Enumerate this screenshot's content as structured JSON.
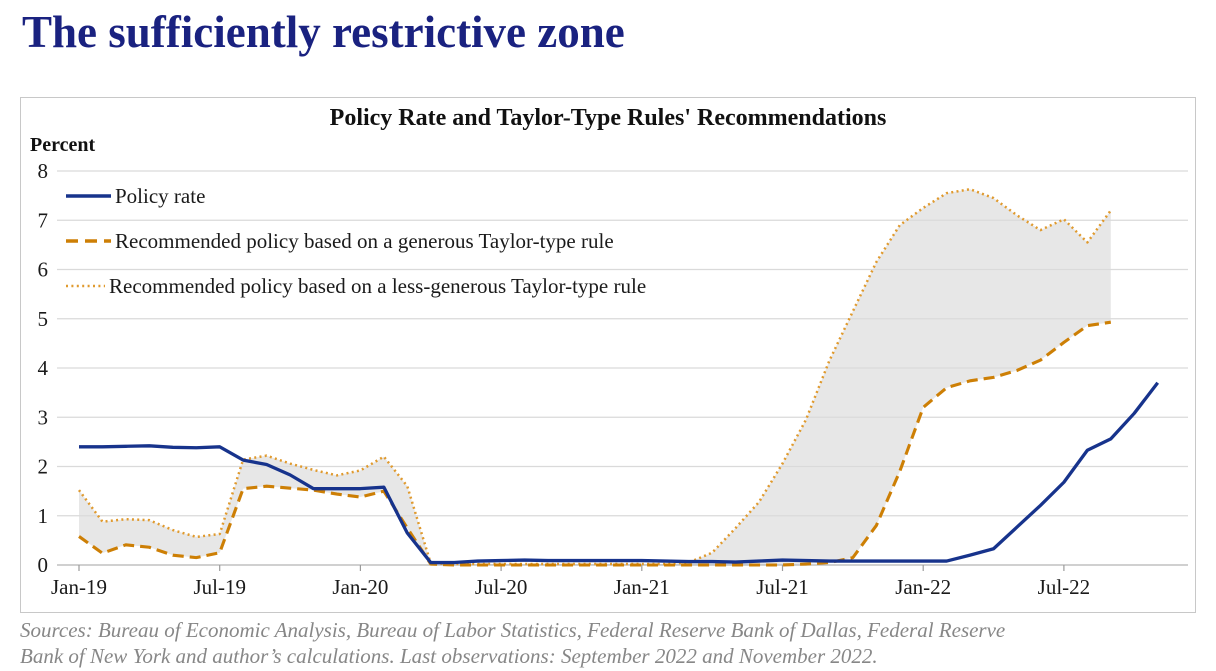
{
  "page": {
    "title": "The sufficiently restrictive zone",
    "title_color": "#1a2280",
    "background_color": "#ffffff"
  },
  "figure": {
    "title": "Policy Rate and Taylor-Type Rules' Recommendations",
    "y_axis_unit": "Percent",
    "panel_border_color": "#c8c8c8",
    "source_note_line1": "Sources: Bureau of Economic Analysis, Bureau of Labor Statistics, Federal Reserve Bank of Dallas, Federal Reserve",
    "source_note_line2": "Bank of New York and author’s calculations. Last observations: September 2022 and November 2022."
  },
  "legend": [
    {
      "label": "Policy rate",
      "style": "solid",
      "color": "#17338c"
    },
    {
      "label": "Recommended policy based on a generous Taylor-type rule",
      "style": "dashed",
      "color": "#cd7f05"
    },
    {
      "label": "Recommended policy based on a less-generous Taylor-type rule",
      "style": "dotted",
      "color": "#e09a2e"
    }
  ],
  "chart_data": {
    "type": "line",
    "title": "Policy Rate and Taylor-Type Rules' Recommendations",
    "ylabel": "Percent",
    "ylim": [
      0,
      8
    ],
    "y_ticks": [
      "0",
      "1",
      "2",
      "3",
      "4",
      "5",
      "6",
      "7",
      "8"
    ],
    "x_tick_labels": [
      "Jan-19",
      "Jul-19",
      "Jan-20",
      "Jul-20",
      "Jan-21",
      "Jul-21",
      "Jan-22",
      "Jul-22"
    ],
    "x_frequency": "monthly starting Jan-2019; policy rate runs through Nov-2022, rule series through Sep-2022",
    "grid": "horizontal gridlines on",
    "legend_position": "top-left inside plot",
    "shaded_band": {
      "between": [
        "generous Taylor-type rule",
        "less-generous Taylor-type rule"
      ],
      "color": "#e7e7e7"
    },
    "series": [
      {
        "name": "Policy rate",
        "color": "#17338c",
        "line_style": "solid",
        "values": [
          2.4,
          2.4,
          2.41,
          2.42,
          2.39,
          2.38,
          2.4,
          2.13,
          2.04,
          1.83,
          1.55,
          1.55,
          1.55,
          1.58,
          0.65,
          0.05,
          0.05,
          0.08,
          0.09,
          0.1,
          0.09,
          0.09,
          0.09,
          0.09,
          0.09,
          0.08,
          0.07,
          0.07,
          0.06,
          0.08,
          0.1,
          0.09,
          0.08,
          0.08,
          0.08,
          0.08,
          0.08,
          0.08,
          0.2,
          0.33,
          0.77,
          1.21,
          1.68,
          2.33,
          2.56,
          3.08,
          3.7
        ]
      },
      {
        "name": "Recommended policy based on a generous Taylor-type rule",
        "color": "#cd7f05",
        "line_style": "dashed",
        "values": [
          0.58,
          0.24,
          0.41,
          0.36,
          0.2,
          0.15,
          0.25,
          1.55,
          1.6,
          1.56,
          1.52,
          1.44,
          1.38,
          1.5,
          0.75,
          0.02,
          0.0,
          0.0,
          0.0,
          0.0,
          0.0,
          0.0,
          0.0,
          0.0,
          0.0,
          0.0,
          0.0,
          0.0,
          0.0,
          0.0,
          0.0,
          0.02,
          0.05,
          0.15,
          0.8,
          1.9,
          3.2,
          3.6,
          3.74,
          3.81,
          3.95,
          4.16,
          4.52,
          4.86,
          4.93
        ]
      },
      {
        "name": "Recommended policy based on a less-generous Taylor-type rule",
        "color": "#e09a2e",
        "line_style": "dotted",
        "values": [
          1.52,
          0.88,
          0.93,
          0.91,
          0.71,
          0.57,
          0.63,
          2.14,
          2.22,
          2.06,
          1.93,
          1.82,
          1.92,
          2.2,
          1.6,
          0.03,
          0.02,
          0.02,
          0.02,
          0.02,
          0.02,
          0.02,
          0.02,
          0.02,
          0.02,
          0.02,
          0.05,
          0.25,
          0.75,
          1.28,
          2.06,
          2.95,
          4.15,
          5.15,
          6.15,
          6.9,
          7.25,
          7.55,
          7.63,
          7.45,
          7.1,
          6.8,
          7.02,
          6.55,
          7.2
        ]
      }
    ]
  }
}
